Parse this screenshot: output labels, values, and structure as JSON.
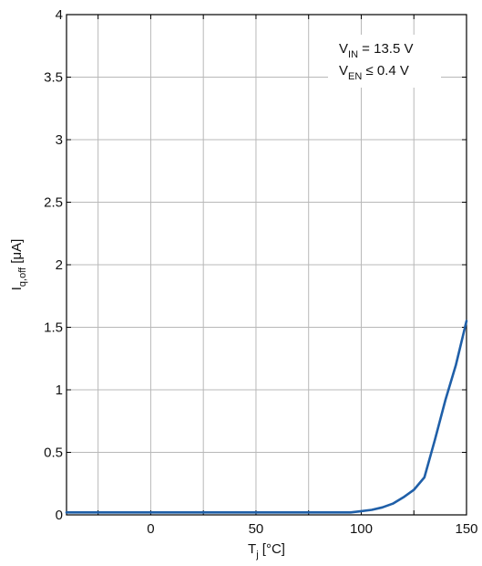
{
  "chart_data": {
    "type": "line",
    "xlabel": {
      "main": "T",
      "sub": "j",
      "unit": " [°C]"
    },
    "ylabel": {
      "main": "I",
      "sub": "q,off",
      "unit": " [μA]"
    },
    "xlim": [
      -40,
      150
    ],
    "ylim": [
      0,
      4
    ],
    "x_ticks": [
      0,
      50,
      100,
      150
    ],
    "x_tick_labels": [
      "0",
      "50",
      "100",
      "150"
    ],
    "x_grid": [
      -25,
      0,
      25,
      50,
      75,
      100,
      125,
      150
    ],
    "y_ticks": [
      0,
      0.5,
      1,
      1.5,
      2,
      2.5,
      3,
      3.5,
      4
    ],
    "y_tick_labels": [
      "0",
      "0.5",
      "1",
      "1.5",
      "2",
      "2.5",
      "3",
      "3.5",
      "4"
    ],
    "grid": true,
    "line_color": "#1f5fa8",
    "annotations": [
      {
        "main": "V",
        "sub": "IN",
        "rest": " = 13.5 V"
      },
      {
        "main": "V",
        "sub": "EN",
        "rest": " ≤ 0.4 V"
      }
    ],
    "series": [
      {
        "x": [
          -40,
          -20,
          0,
          20,
          40,
          60,
          80,
          90,
          95,
          100,
          105,
          110,
          115,
          120,
          125,
          130,
          135,
          140,
          145,
          150
        ],
        "values": [
          0.02,
          0.02,
          0.02,
          0.02,
          0.02,
          0.02,
          0.02,
          0.02,
          0.02,
          0.03,
          0.04,
          0.06,
          0.09,
          0.14,
          0.2,
          0.3,
          0.6,
          0.92,
          1.2,
          1.55
        ]
      }
    ]
  }
}
